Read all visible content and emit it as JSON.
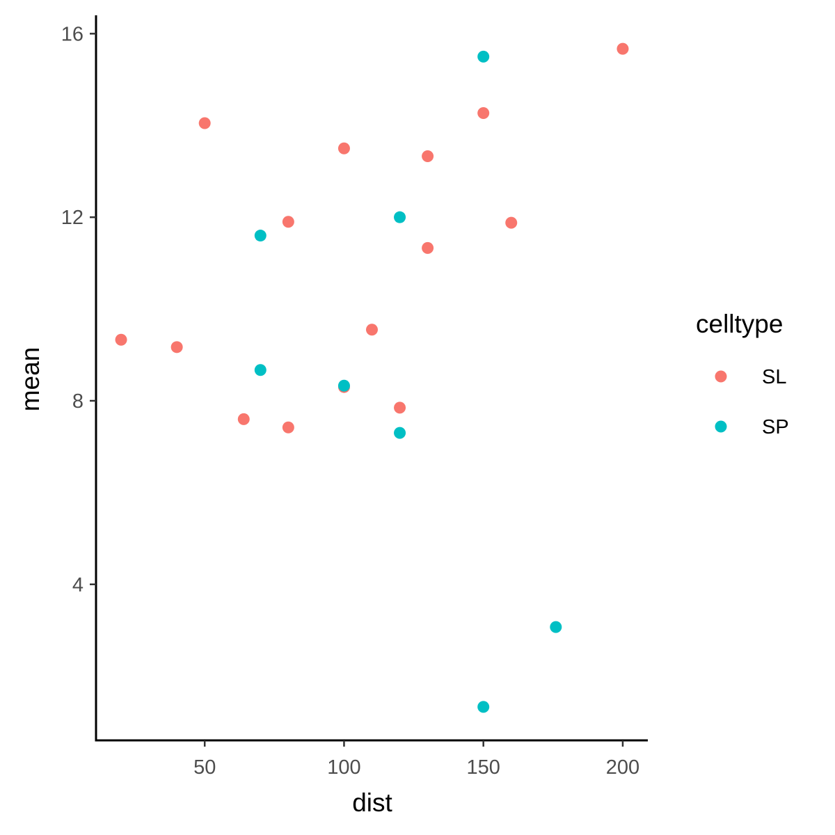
{
  "chart_data": {
    "type": "scatter",
    "title": "",
    "xlabel": "dist",
    "ylabel": "mean",
    "xlim": [
      11,
      209
    ],
    "ylim": [
      0.6,
      16.4
    ],
    "xticks": [
      50,
      100,
      150,
      200
    ],
    "yticks": [
      4,
      8,
      12,
      16
    ],
    "grid": false,
    "legend": {
      "title": "celltype",
      "placement": "right"
    },
    "series": [
      {
        "name": "SL",
        "color": "#F8766D",
        "points": [
          {
            "x": 20,
            "y": 9.33
          },
          {
            "x": 40,
            "y": 9.17
          },
          {
            "x": 50,
            "y": 14.05
          },
          {
            "x": 64,
            "y": 7.6
          },
          {
            "x": 80,
            "y": 11.9
          },
          {
            "x": 80,
            "y": 7.42
          },
          {
            "x": 100,
            "y": 13.5
          },
          {
            "x": 100,
            "y": 8.3
          },
          {
            "x": 110,
            "y": 9.55
          },
          {
            "x": 120,
            "y": 7.85
          },
          {
            "x": 130,
            "y": 13.33
          },
          {
            "x": 130,
            "y": 11.33
          },
          {
            "x": 150,
            "y": 14.27
          },
          {
            "x": 160,
            "y": 11.88
          },
          {
            "x": 200,
            "y": 15.67
          }
        ]
      },
      {
        "name": "SP",
        "color": "#00BFC4",
        "points": [
          {
            "x": 70,
            "y": 11.6
          },
          {
            "x": 70,
            "y": 8.67
          },
          {
            "x": 100,
            "y": 8.33
          },
          {
            "x": 120,
            "y": 12.0
          },
          {
            "x": 120,
            "y": 7.3
          },
          {
            "x": 150,
            "y": 15.5
          },
          {
            "x": 150,
            "y": 1.33
          },
          {
            "x": 176,
            "y": 3.07
          }
        ]
      }
    ]
  }
}
